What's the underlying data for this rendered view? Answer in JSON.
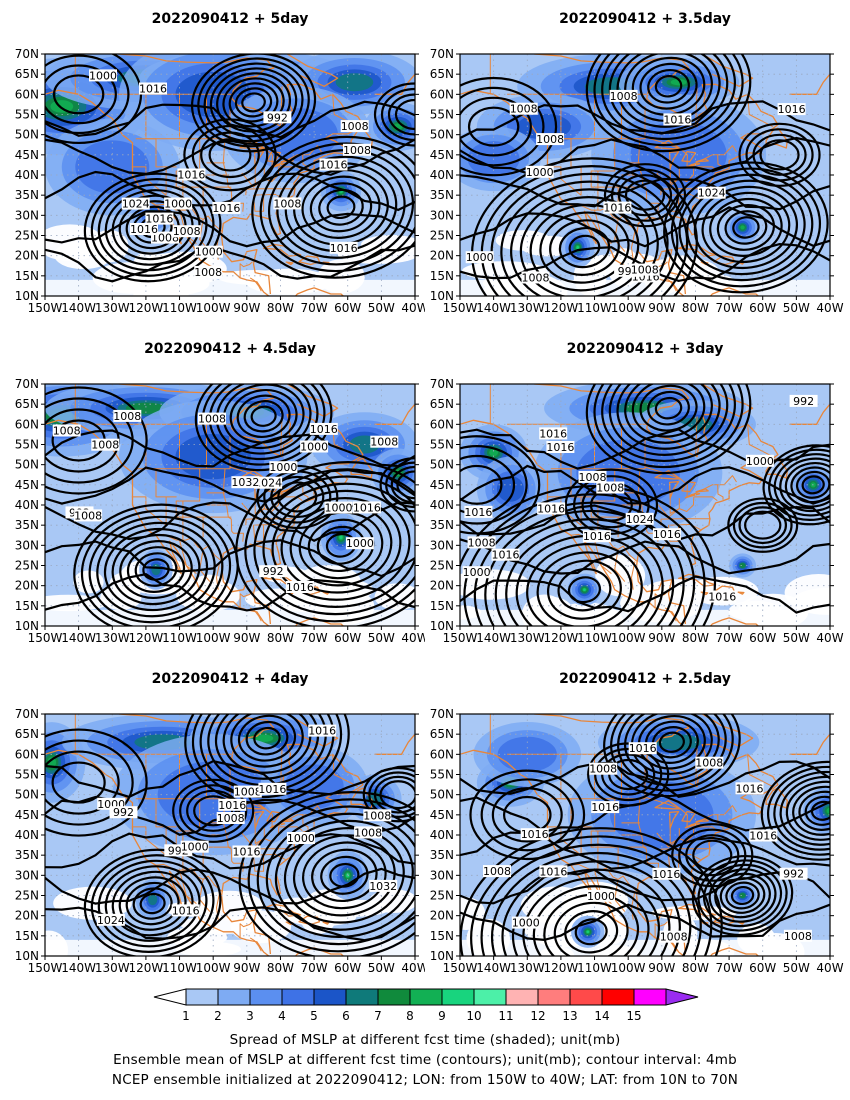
{
  "panels": [
    {
      "title": "2022090412  +  5day",
      "high_labels": [
        "1000",
        "1016",
        "1024",
        "1016",
        "1016",
        "1008",
        "1008",
        "1008",
        "992",
        "1000",
        "1016",
        "1016",
        "1000",
        "1008",
        "1016",
        "1008",
        "1016",
        "1008"
      ]
    },
    {
      "title": "2022090412  +  3.5day",
      "high_labels": [
        "1016",
        "992",
        "1000",
        "1008",
        "1024",
        "1008",
        "1016",
        "1008",
        "1016",
        "1008",
        "1000",
        "1016",
        "1008"
      ]
    },
    {
      "title": "2022090412  +  4.5day",
      "high_labels": [
        "1000",
        "992",
        "1016",
        "1024",
        "1016",
        "1032",
        "1000",
        "1008",
        "1008",
        "1000",
        "1008",
        "992",
        "1000",
        "1016",
        "1008",
        "1008",
        "1008"
      ]
    },
    {
      "title": "2022090412  +  3day",
      "high_labels": [
        "992",
        "1016",
        "1016",
        "1000",
        "1008",
        "1016",
        "1024",
        "1016",
        "1016",
        "1016",
        "1008",
        "1016",
        "1008",
        "1000",
        "1016"
      ]
    },
    {
      "title": "2022090412  +  4day",
      "high_labels": [
        "1000",
        "992",
        "1024",
        "1032",
        "1008",
        "1016",
        "1016",
        "1016",
        "1016",
        "1008",
        "1008",
        "992",
        "1000",
        "1016",
        "1000",
        "1008"
      ]
    },
    {
      "title": "2022090412  +  2.5day",
      "high_labels": [
        "1016",
        "992",
        "1016",
        "1000",
        "1008",
        "1008",
        "1016",
        "1016",
        "1016",
        "1008",
        "1016",
        "1016",
        "1008",
        "1008",
        "1000"
      ]
    }
  ],
  "axes": {
    "lat_ticks": [
      "70N",
      "65N",
      "60N",
      "55N",
      "50N",
      "45N",
      "40N",
      "35N",
      "30N",
      "25N",
      "20N",
      "15N",
      "10N"
    ],
    "lon_ticks": [
      "150W",
      "140W",
      "130W",
      "120W",
      "110W",
      "100W",
      "90W",
      "80W",
      "70W",
      "60W",
      "50W",
      "40W"
    ]
  },
  "colorbar": {
    "labels": [
      "1",
      "2",
      "3",
      "4",
      "5",
      "6",
      "7",
      "8",
      "9",
      "10",
      "11",
      "12",
      "13",
      "14",
      "15"
    ],
    "colors": [
      "#ffffff",
      "#a9c8f5",
      "#7eabf3",
      "#5b8ff0",
      "#3e72e6",
      "#1b55c8",
      "#0f7a7a",
      "#108a3c",
      "#12b054",
      "#18d47e",
      "#4cf0a8",
      "#ffb3b3",
      "#ff7d7d",
      "#ff4a4a",
      "#ff0000",
      "#ff00ff",
      "#9a2cf0"
    ]
  },
  "footer": {
    "line1": "Spread of MSLP at different fcst time (shaded); unit(mb)",
    "line2": "Ensemble mean of MSLP at different fcst time (contours); unit(mb); contour interval: 4mb",
    "line3": "NCEP ensemble initialized at 2022090412; LON: from 150W to 40W; LAT: from 10N to 70N"
  }
}
